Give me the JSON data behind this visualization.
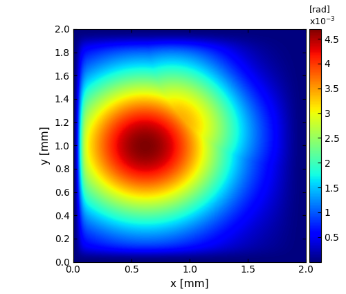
{
  "xmin": 0,
  "xmax": 2,
  "ymin": 0,
  "ymax": 2,
  "xlabel": "x [mm]",
  "ylabel": "y [mm]",
  "colorbar_label": "[rad]",
  "colorbar_exponent": "x10$^{-3}$",
  "vmin": 0,
  "vmax": 0.0047,
  "colorbar_ticks": [
    0.0005,
    0.001,
    0.0015,
    0.002,
    0.0025,
    0.003,
    0.0035,
    0.004,
    0.0045
  ],
  "colorbar_ticklabels": [
    "0.5",
    "1",
    "1.5",
    "2",
    "2.5",
    "3",
    "3.5",
    "4",
    "4.5"
  ],
  "colormap": "jet",
  "grid_n": 300,
  "peak_x": 0.62,
  "peak_y": 1.0,
  "peak_value": 0.0047,
  "background_color": "white",
  "figsize": [
    5.0,
    4.25
  ],
  "dpi": 100,
  "xticks": [
    0,
    0.5,
    1.0,
    1.5,
    2.0
  ],
  "yticks": [
    0,
    0.2,
    0.4,
    0.6,
    0.8,
    1.0,
    1.2,
    1.4,
    1.6,
    1.8,
    2.0
  ]
}
